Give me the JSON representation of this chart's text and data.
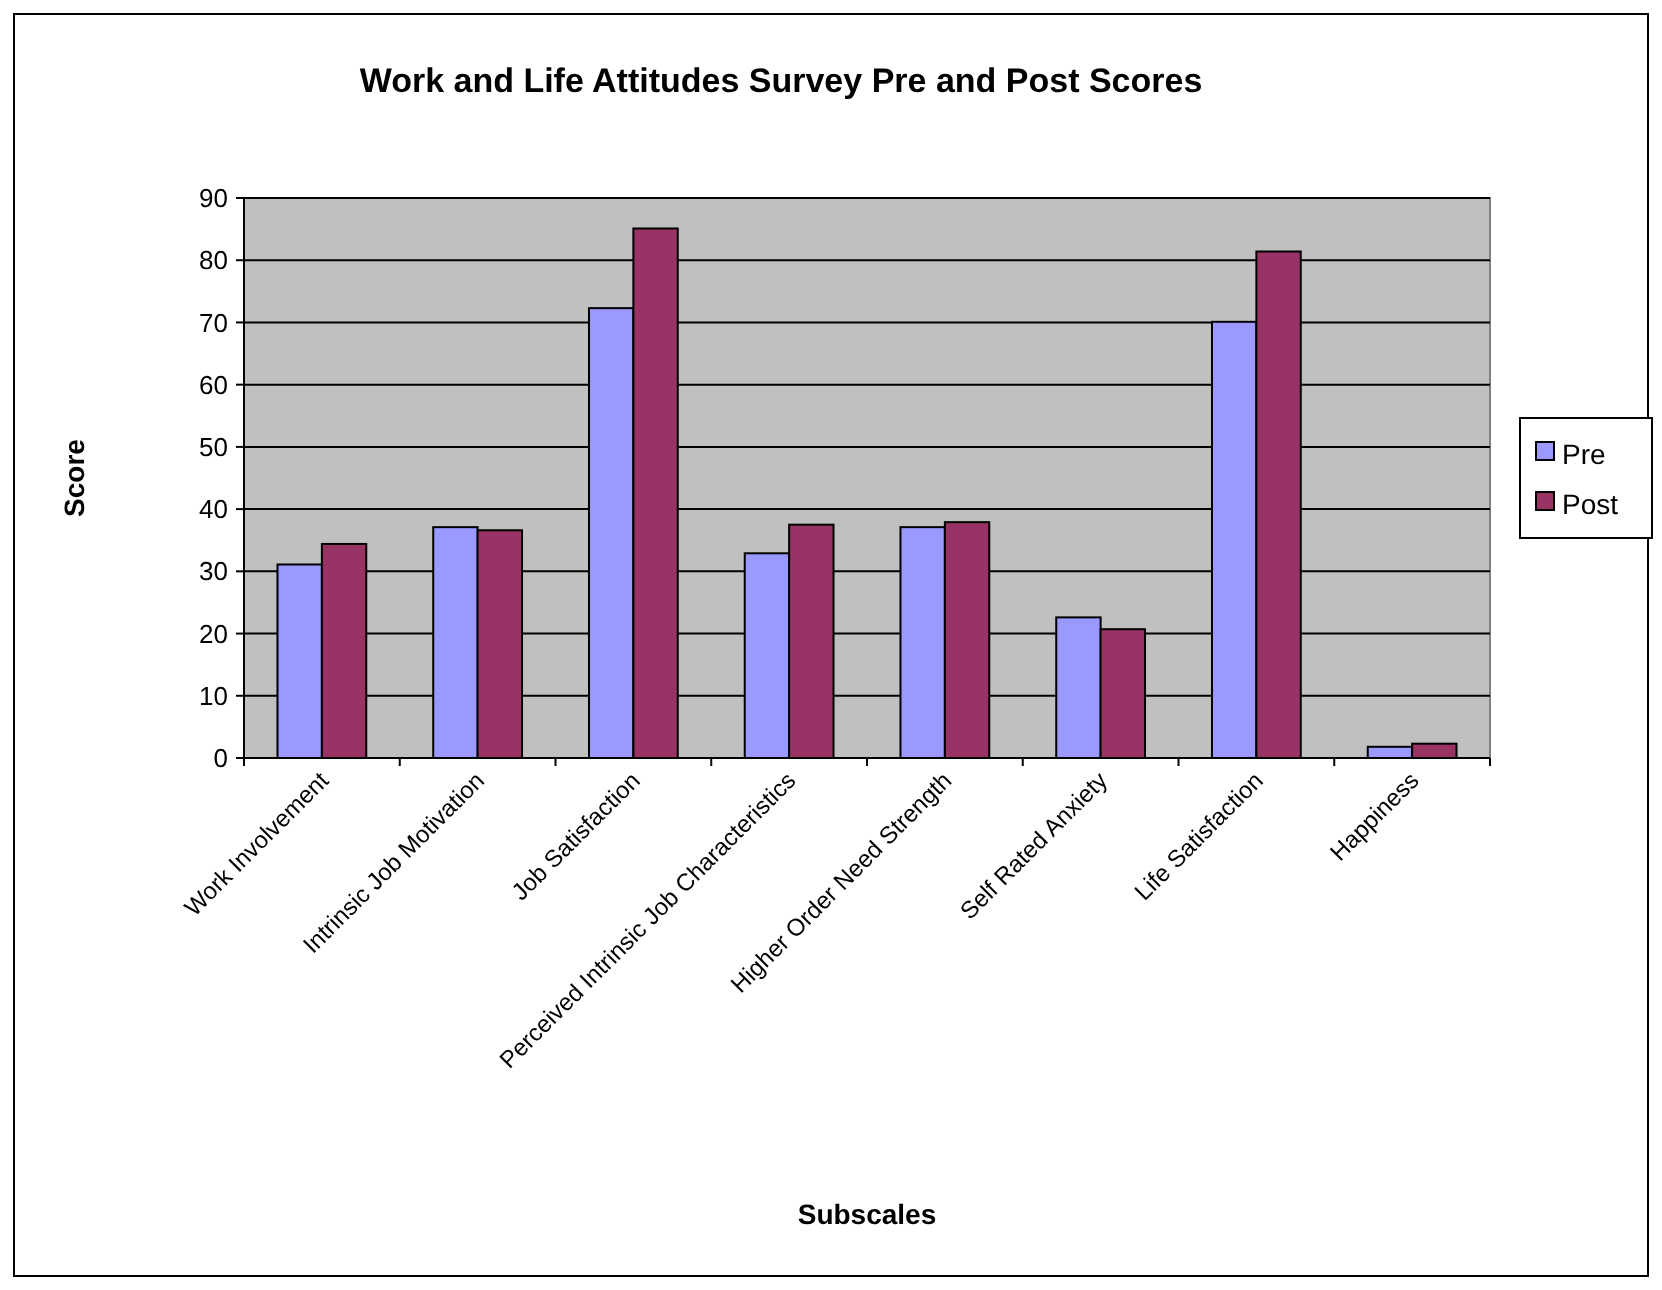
{
  "chart_data": {
    "type": "bar",
    "title": "Work and Life Attitudes Survey Pre and Post Scores",
    "xlabel": "Subscales",
    "ylabel": "Score",
    "categories": [
      "Work Involvement",
      "Intrinsic Job Motivation",
      "Job Satisfaction",
      "Perceived Intrinsic Job Characteristics",
      "Higher Order Need Strength",
      "Self Rated Anxiety",
      "Life Satisfaction",
      "Happiness"
    ],
    "series": [
      {
        "name": "Pre",
        "color": "#9999ff",
        "values": [
          31.1,
          37.1,
          72.3,
          32.9,
          37.1,
          22.6,
          70.1,
          1.8
        ]
      },
      {
        "name": "Post",
        "color": "#993366",
        "values": [
          34.4,
          36.6,
          85.1,
          37.5,
          37.9,
          20.7,
          81.4,
          2.3
        ]
      }
    ],
    "ylim": [
      0,
      90
    ],
    "yticks": [
      0,
      10,
      20,
      30,
      40,
      50,
      60,
      70,
      80,
      90
    ],
    "grid": "y",
    "legend": "right"
  }
}
